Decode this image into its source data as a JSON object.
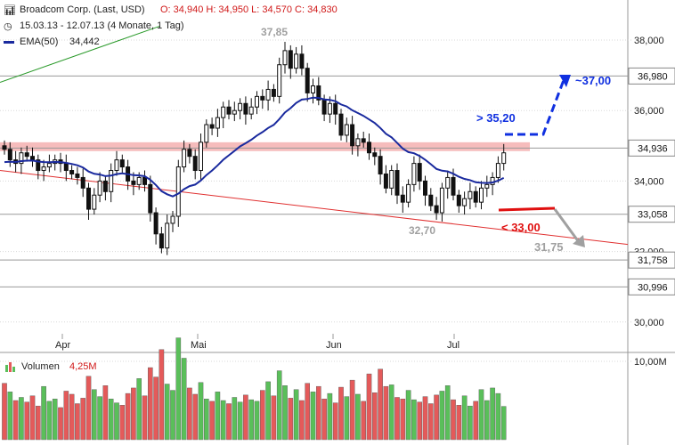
{
  "header": {
    "title": "Broadcom Corp. (Last, USD)",
    "ohlc": "O: 34,940  H: 34,950  L: 34,570  C: 34,830",
    "period": "15.03.13 - 12.07.13 (4 Monate, 1 Tag)",
    "ema_label": "EMA(50)",
    "ema_value": "34,442",
    "volume_label": "Volumen",
    "volume_value": "4,25M"
  },
  "colors": {
    "up": "#5abf5a",
    "down": "#e45a5a",
    "ema": "#1a2a9e",
    "trend": "#e03030",
    "resistance_band": "#f4b0b0",
    "blue_annotation": "#1030e0",
    "red_annotation": "#e01010",
    "gray_annotation": "#a0a0a0"
  },
  "chart_data": [
    {
      "type": "candlestick",
      "title": "Broadcom Corp. (Last, USD)",
      "x_months": [
        "Apr",
        "Mai",
        "Jun",
        "Jul"
      ],
      "ylim": [
        29.2,
        38.5
      ],
      "y_ticks": [
        "30,000",
        "32,000",
        "34,000",
        "36,000",
        "38,000"
      ],
      "y_tick_values": [
        30,
        32,
        34,
        36,
        38
      ],
      "price_markers": [
        {
          "label": "36,980",
          "value": 36.98
        },
        {
          "label": "34,936",
          "value": 34.936
        },
        {
          "label": "33,058",
          "value": 33.058
        },
        {
          "label": "31,758",
          "value": 31.758
        },
        {
          "label": "30,996",
          "value": 30.996
        }
      ],
      "closes": [
        34.9,
        34.6,
        34.5,
        34.8,
        34.7,
        34.6,
        34.3,
        34.4,
        34.5,
        34.6,
        34.5,
        34.3,
        34.2,
        34.1,
        33.8,
        33.2,
        33.6,
        34.0,
        33.7,
        34.3,
        34.6,
        34.4,
        34.0,
        33.9,
        34.1,
        33.9,
        33.1,
        32.5,
        32.1,
        32.8,
        33.0,
        34.4,
        34.9,
        34.7,
        34.3,
        35.1,
        35.6,
        35.5,
        35.8,
        36.1,
        35.9,
        36.0,
        36.2,
        35.9,
        36.1,
        36.4,
        36.3,
        36.6,
        36.4,
        37.3,
        37.7,
        37.2,
        37.6,
        37.2,
        36.5,
        36.7,
        36.3,
        35.9,
        36.2,
        35.9,
        35.3,
        35.6,
        35.0,
        35.2,
        35.1,
        34.8,
        34.7,
        34.2,
        33.8,
        34.3,
        33.6,
        33.4,
        33.9,
        34.5,
        34.0,
        33.6,
        33.3,
        33.1,
        33.8,
        34.1,
        33.6,
        33.3,
        33.5,
        33.7,
        33.4,
        33.8,
        33.9,
        34.1,
        34.5,
        34.8
      ],
      "annotations": [
        {
          "text": "37,85",
          "value": 37.85
        },
        {
          "text": "32,70",
          "value": 32.7
        },
        {
          "text": "> 35,20",
          "value": 35.2
        },
        {
          "text": "~37,00",
          "value": 37.0
        },
        {
          "text": "< 33,00",
          "value": 33.0
        },
        {
          "text": "31,75",
          "value": 31.75
        }
      ]
    },
    {
      "type": "bar",
      "title": "Volumen",
      "y_ticks": [
        "10,00M"
      ],
      "y_tick_values": [
        10
      ],
      "ylim": [
        0,
        15
      ],
      "latest": "4,25M",
      "values": [
        7.2,
        6.1,
        5.0,
        5.4,
        4.8,
        5.6,
        4.3,
        6.8,
        4.9,
        5.2,
        4.1,
        6.2,
        5.8,
        4.6,
        5.3,
        8.1,
        6.4,
        5.5,
        6.9,
        5.2,
        4.7,
        4.4,
        5.9,
        6.6,
        7.8,
        5.6,
        9.2,
        8.0,
        11.5,
        7.1,
        6.3,
        13.0,
        10.4,
        6.6,
        5.8,
        7.3,
        5.2,
        4.9,
        6.1,
        5.0,
        4.6,
        5.4,
        4.8,
        5.7,
        5.1,
        4.9,
        6.3,
        7.4,
        5.6,
        8.8,
        6.9,
        5.3,
        6.4,
        5.0,
        7.2,
        6.1,
        6.8,
        5.2,
        5.9,
        4.7,
        6.7,
        5.5,
        7.6,
        5.8,
        4.9,
        8.4,
        6.0,
        9.0,
        6.8,
        7.0,
        5.4,
        5.2,
        6.3,
        5.1,
        4.8,
        5.5,
        4.6,
        5.7,
        6.2,
        6.9,
        5.1,
        4.4,
        5.6,
        4.3,
        4.9,
        6.4,
        5.0,
        6.6,
        5.9,
        4.25
      ],
      "up": [
        false,
        true,
        false,
        true,
        false,
        false,
        false,
        true,
        true,
        true,
        false,
        false,
        false,
        false,
        false,
        false,
        true,
        true,
        false,
        true,
        true,
        false,
        false,
        false,
        true,
        false,
        false,
        false,
        false,
        true,
        true,
        true,
        true,
        false,
        false,
        true,
        true,
        false,
        true,
        true,
        false,
        true,
        true,
        false,
        true,
        true,
        false,
        true,
        false,
        true,
        true,
        false,
        true,
        false,
        false,
        true,
        false,
        false,
        true,
        false,
        false,
        true,
        false,
        true,
        false,
        false,
        false,
        false,
        false,
        true,
        false,
        false,
        true,
        true,
        false,
        false,
        false,
        false,
        true,
        true,
        false,
        false,
        true,
        true,
        false,
        true,
        true,
        true,
        true,
        true
      ]
    }
  ]
}
